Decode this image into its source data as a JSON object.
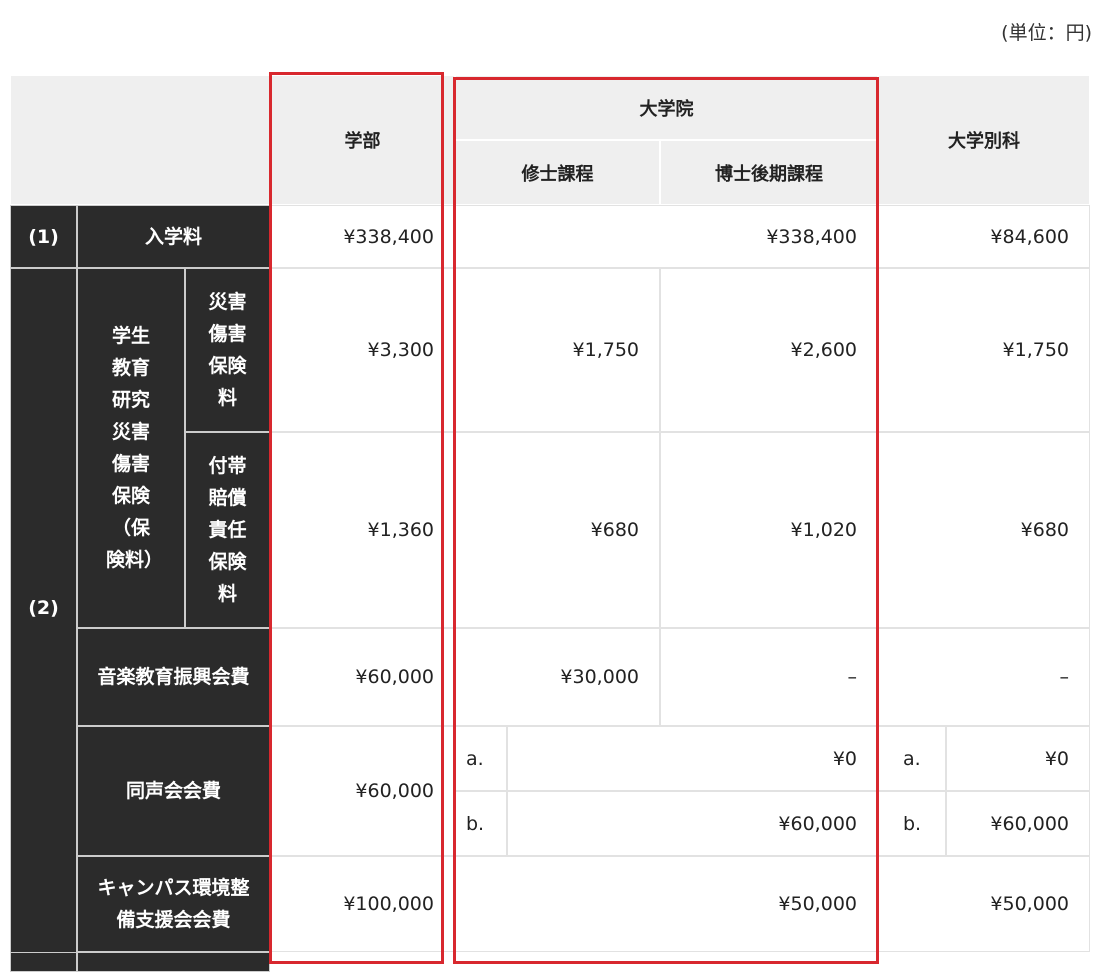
{
  "unit": "(単位：円)",
  "header": {
    "undergrad": "学部",
    "graduate": "大学院",
    "masters": "修士課程",
    "doctoral": "博士後期課程",
    "special": "大学別科"
  },
  "rows": {
    "r1": {
      "num": "(1)",
      "label": "入学料",
      "undergrad": "¥338,400",
      "graduate": "¥338,400",
      "special": "¥84,600"
    },
    "r2": {
      "num": "(2)",
      "insurance_group": "学生教育研究災害傷害保険（保険料）",
      "disaster": {
        "label": "災害傷害保険料",
        "undergrad": "¥3,300",
        "masters": "¥1,750",
        "doctoral": "¥2,600",
        "special": "¥1,750"
      },
      "liability": {
        "label": "付帯賠償責任保険料",
        "undergrad": "¥1,360",
        "masters": "¥680",
        "doctoral": "¥1,020",
        "special": "¥680"
      },
      "music": {
        "label": "音楽教育振興会費",
        "undergrad": "¥60,000",
        "masters": "¥30,000",
        "doctoral": "–",
        "special": "–"
      },
      "alumni": {
        "label": "同声会会費",
        "undergrad": "¥60,000",
        "a": "a.",
        "b": "b.",
        "grad_a": "¥0",
        "grad_b": "¥60,000",
        "special_a": "¥0",
        "special_b": "¥60,000"
      },
      "campus": {
        "label": "キャンパス環境整備支援会会費",
        "undergrad": "¥100,000",
        "graduate": "¥50,000",
        "special": "¥50,000"
      }
    }
  }
}
